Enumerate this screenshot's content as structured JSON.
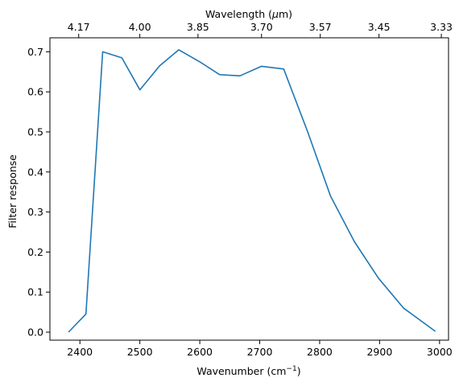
{
  "colors": {
    "line": "#1f77b4",
    "axis": "#000000",
    "background": "#ffffff"
  },
  "chart_data": {
    "type": "line",
    "xlabel": "Wavenumber (cm",
    "xlabel_sup": "−1",
    "xlabel_end": ")",
    "ylabel": "Filter response",
    "top_xlabel_prefix": "Wavelength (",
    "top_xlabel_mu": "μ",
    "top_xlabel_suffix": "m)",
    "xlim": [
      2350,
      3015
    ],
    "ylim": [
      -0.02,
      0.735
    ],
    "grid": false,
    "x_ticks": [
      2400,
      2500,
      2600,
      2700,
      2800,
      2900,
      3000
    ],
    "y_ticks": [
      0.0,
      0.1,
      0.2,
      0.3,
      0.4,
      0.5,
      0.6,
      0.7
    ],
    "y_tick_labels": [
      "0.0",
      "0.1",
      "0.2",
      "0.3",
      "0.4",
      "0.5",
      "0.6",
      "0.7"
    ],
    "top_ticks": [
      {
        "label": "4.17",
        "at_wavenumber": 2398
      },
      {
        "label": "4.00",
        "at_wavenumber": 2500
      },
      {
        "label": "3.85",
        "at_wavenumber": 2597
      },
      {
        "label": "3.70",
        "at_wavenumber": 2703
      },
      {
        "label": "3.57",
        "at_wavenumber": 2801
      },
      {
        "label": "3.45",
        "at_wavenumber": 2899
      },
      {
        "label": "3.33",
        "at_wavenumber": 3003
      }
    ],
    "series": [
      {
        "x": [
          2381,
          2410,
          2438,
          2470,
          2500,
          2533,
          2565,
          2600,
          2633,
          2667,
          2703,
          2740,
          2780,
          2818,
          2858,
          2898,
          2940,
          2993
        ],
        "y": [
          0.0,
          0.045,
          0.7,
          0.685,
          0.605,
          0.665,
          0.705,
          0.675,
          0.643,
          0.64,
          0.664,
          0.657,
          0.5,
          0.34,
          0.226,
          0.135,
          0.06,
          0.002
        ]
      }
    ]
  }
}
